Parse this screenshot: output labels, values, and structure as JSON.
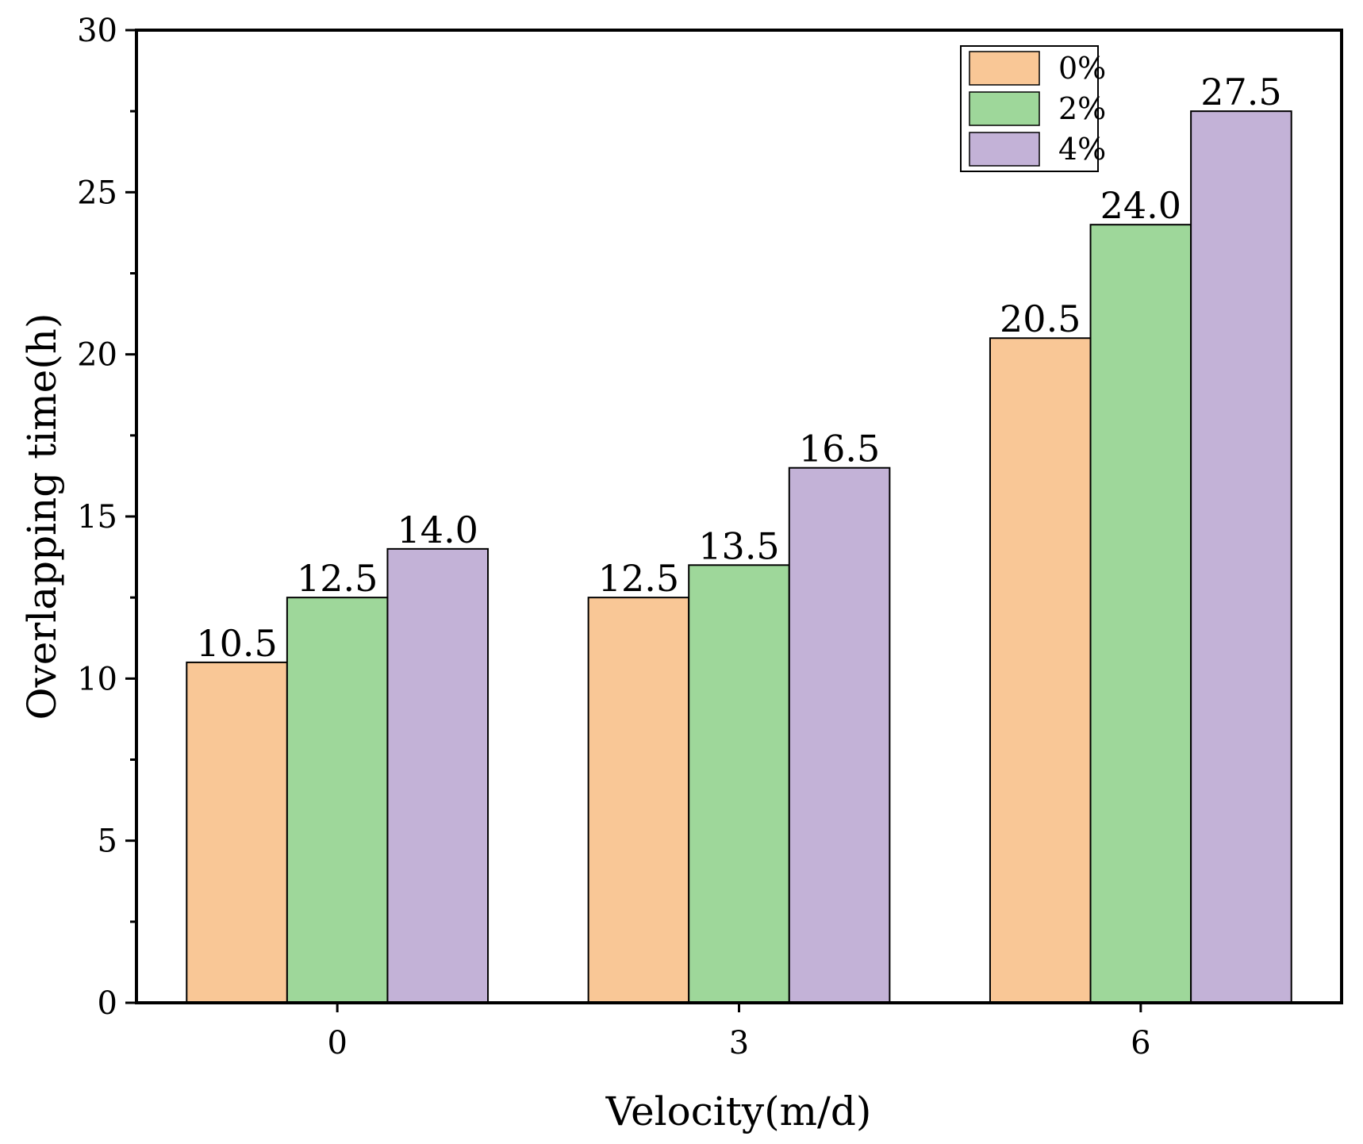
{
  "chart_data": {
    "type": "bar",
    "title": "",
    "xlabel": "Velocity(m/d)",
    "ylabel": "Overlapping time(h)",
    "categories": [
      "0",
      "3",
      "6"
    ],
    "ylim": [
      0,
      30
    ],
    "yticks": [
      0,
      5,
      10,
      15,
      20,
      25,
      30
    ],
    "ytick_labels": [
      "0",
      "5",
      "10",
      "15",
      "20",
      "25",
      "30"
    ],
    "series": [
      {
        "name": "0%",
        "color": "#F9C796",
        "values": [
          10.5,
          12.5,
          20.5
        ],
        "labels": [
          "10.5",
          "12.5",
          "20.5"
        ]
      },
      {
        "name": "2%",
        "color": "#9ED79A",
        "values": [
          12.5,
          13.5,
          24.0
        ],
        "labels": [
          "12.5",
          "13.5",
          "24.0"
        ]
      },
      {
        "name": "4%",
        "color": "#C3B2D7",
        "values": [
          14.0,
          16.5,
          27.5
        ],
        "labels": [
          "14.0",
          "16.5",
          "27.5"
        ]
      }
    ],
    "legend_position": "top-right",
    "grid": false
  }
}
